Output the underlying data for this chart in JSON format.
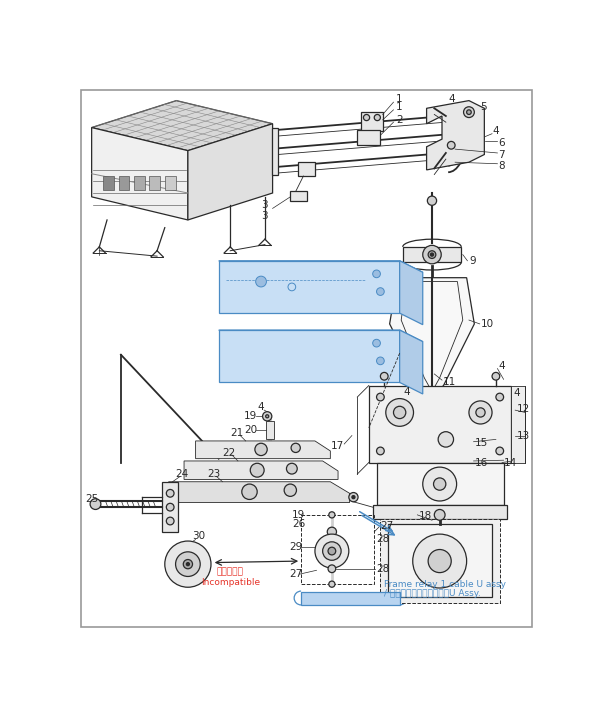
{
  "bg_color": "#ffffff",
  "line_color": "#2a2a2a",
  "blue_color": "#4a8bc4",
  "blue_fill": "#b8d4f0",
  "red_color": "#e63329",
  "gray_fill": "#e8e8e8",
  "gray_mid": "#d0d0d0",
  "gray_dark": "#aaaaaa",
  "incompatible_text": [
    "直換性なし",
    "Incompatible"
  ],
  "frame_relay_text": [
    "Frame relay 1 cable U assy",
    "/ フレーム中継１ケーブルU Assy."
  ]
}
